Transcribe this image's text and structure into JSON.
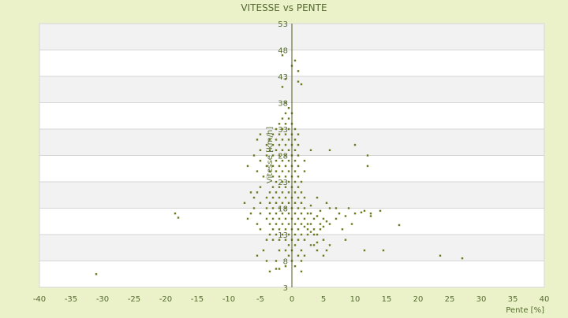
{
  "chart_data": {
    "type": "scatter",
    "title": "VITESSE vs PENTE",
    "xlabel": "Pente [%]",
    "ylabel": "Vitesse [km/h]",
    "xlim": [
      -40,
      40
    ],
    "ylim": [
      3,
      53
    ],
    "xticks": [
      -40,
      -35,
      -30,
      -25,
      -20,
      -15,
      -10,
      -5,
      0,
      5,
      10,
      15,
      20,
      25,
      30,
      35,
      40
    ],
    "yticks": [
      3,
      8,
      13,
      18,
      23,
      28,
      33,
      38,
      43,
      48,
      53
    ],
    "grid": "alternating horizontal bands",
    "legend": "none",
    "colors": {
      "background": "#ebf1c9",
      "plot_band_light": "#ffffff",
      "plot_band_dark": "#f2f2f2",
      "grid_line": "#d6d6d6",
      "text": "#556b2f",
      "point": "#6b7a1e",
      "axis": "#4a5a1a"
    },
    "series": [
      {
        "points": [
          [
            -31,
            5.5
          ],
          [
            -18.5,
            17
          ],
          [
            -18,
            16.2
          ],
          [
            23.5,
            9
          ],
          [
            27,
            8.5
          ],
          [
            17,
            14.8
          ],
          [
            14.5,
            10
          ],
          [
            14,
            17.5
          ],
          [
            12.5,
            16.5
          ],
          [
            12.5,
            17
          ],
          [
            11.5,
            17.5
          ],
          [
            11,
            17.2
          ],
          [
            12,
            26
          ],
          [
            12,
            28
          ],
          [
            11.5,
            10
          ],
          [
            10,
            30
          ],
          [
            10,
            17
          ],
          [
            9.5,
            15
          ],
          [
            9,
            18
          ],
          [
            8.5,
            16.5
          ],
          [
            8.5,
            12
          ],
          [
            8,
            14
          ],
          [
            7.5,
            17
          ],
          [
            7,
            16
          ],
          [
            7,
            18
          ],
          [
            6,
            29
          ],
          [
            6,
            18
          ],
          [
            6,
            15
          ],
          [
            5.5,
            19
          ],
          [
            5.5,
            15.5
          ],
          [
            5,
            14.5
          ],
          [
            5,
            16
          ],
          [
            5,
            12
          ],
          [
            4.5,
            14
          ],
          [
            4.5,
            17.5
          ],
          [
            4.5,
            15
          ],
          [
            4,
            16.5
          ],
          [
            4,
            13
          ],
          [
            4,
            20
          ],
          [
            3.5,
            14
          ],
          [
            3.5,
            16
          ],
          [
            3.5,
            13
          ],
          [
            3,
            15
          ],
          [
            3,
            17
          ],
          [
            3,
            13.5
          ],
          [
            3,
            18.5
          ],
          [
            3,
            29
          ],
          [
            2.5,
            13
          ],
          [
            2.5,
            15
          ],
          [
            2.5,
            17
          ],
          [
            2.5,
            14
          ],
          [
            2,
            14.5
          ],
          [
            2,
            16
          ],
          [
            2,
            18
          ],
          [
            2,
            20
          ],
          [
            2,
            12
          ],
          [
            2,
            25
          ],
          [
            2,
            27
          ],
          [
            1.5,
            15
          ],
          [
            1.5,
            13
          ],
          [
            1.5,
            17
          ],
          [
            1.5,
            19
          ],
          [
            1.5,
            21
          ],
          [
            1.5,
            23
          ],
          [
            1.5,
            10
          ],
          [
            1.5,
            8
          ],
          [
            1,
            14
          ],
          [
            1,
            16
          ],
          [
            1,
            18
          ],
          [
            1,
            20
          ],
          [
            1,
            22
          ],
          [
            1,
            24
          ],
          [
            1,
            26
          ],
          [
            1,
            28
          ],
          [
            1,
            30
          ],
          [
            1,
            32
          ],
          [
            1,
            12
          ],
          [
            1,
            42
          ],
          [
            1.5,
            41.5
          ],
          [
            1,
            44
          ],
          [
            0.5,
            15
          ],
          [
            0.5,
            17
          ],
          [
            0.5,
            19
          ],
          [
            0.5,
            21
          ],
          [
            0.5,
            23
          ],
          [
            0.5,
            25
          ],
          [
            0.5,
            27
          ],
          [
            0.5,
            29
          ],
          [
            0.5,
            31
          ],
          [
            0.5,
            33
          ],
          [
            0.5,
            13
          ],
          [
            0.5,
            11
          ],
          [
            0.5,
            46
          ],
          [
            0,
            14
          ],
          [
            0,
            16
          ],
          [
            0,
            18
          ],
          [
            0,
            20
          ],
          [
            0,
            22
          ],
          [
            0,
            24
          ],
          [
            0,
            26
          ],
          [
            0,
            28
          ],
          [
            0,
            30
          ],
          [
            0,
            32
          ],
          [
            0,
            34
          ],
          [
            0,
            36
          ],
          [
            0,
            12
          ],
          [
            0,
            10
          ],
          [
            0,
            8
          ],
          [
            0,
            45
          ],
          [
            -0.5,
            15
          ],
          [
            -0.5,
            17
          ],
          [
            -0.5,
            19
          ],
          [
            -0.5,
            21
          ],
          [
            -0.5,
            23
          ],
          [
            -0.5,
            25
          ],
          [
            -0.5,
            27
          ],
          [
            -0.5,
            29
          ],
          [
            -0.5,
            31
          ],
          [
            -0.5,
            33
          ],
          [
            -0.5,
            35
          ],
          [
            -0.5,
            37
          ],
          [
            -0.5,
            13
          ],
          [
            -0.5,
            11
          ],
          [
            -0.5,
            9
          ],
          [
            -1,
            14
          ],
          [
            -1,
            16
          ],
          [
            -1,
            18
          ],
          [
            -1,
            20
          ],
          [
            -1,
            22
          ],
          [
            -1,
            24
          ],
          [
            -1,
            26
          ],
          [
            -1,
            28
          ],
          [
            -1,
            30
          ],
          [
            -1,
            32
          ],
          [
            -1,
            34
          ],
          [
            -1,
            36
          ],
          [
            -1,
            38
          ],
          [
            -1,
            42.5
          ],
          [
            -1,
            12
          ],
          [
            -1,
            10
          ],
          [
            -1.5,
            15
          ],
          [
            -1.5,
            17
          ],
          [
            -1.5,
            19
          ],
          [
            -1.5,
            21
          ],
          [
            -1.5,
            23
          ],
          [
            -1.5,
            25
          ],
          [
            -1.5,
            27
          ],
          [
            -1.5,
            29
          ],
          [
            -1.5,
            31
          ],
          [
            -1.5,
            33
          ],
          [
            -1.5,
            35
          ],
          [
            -1.5,
            41
          ],
          [
            -1.5,
            47
          ],
          [
            -1.5,
            13
          ],
          [
            -2,
            14
          ],
          [
            -2,
            16
          ],
          [
            -2,
            18
          ],
          [
            -2,
            20
          ],
          [
            -2,
            22
          ],
          [
            -2,
            24
          ],
          [
            -2,
            26
          ],
          [
            -2,
            28
          ],
          [
            -2,
            30
          ],
          [
            -2,
            32
          ],
          [
            -2,
            34
          ],
          [
            -2,
            12
          ],
          [
            -2,
            10
          ],
          [
            -2.5,
            15
          ],
          [
            -2.5,
            17
          ],
          [
            -2.5,
            19
          ],
          [
            -2.5,
            21
          ],
          [
            -2.5,
            23
          ],
          [
            -2.5,
            25
          ],
          [
            -2.5,
            27
          ],
          [
            -2.5,
            29
          ],
          [
            -2.5,
            31
          ],
          [
            -2.5,
            33
          ],
          [
            -2.5,
            13
          ],
          [
            -2.5,
            8
          ],
          [
            -3,
            14
          ],
          [
            -3,
            16
          ],
          [
            -3,
            18
          ],
          [
            -3,
            20
          ],
          [
            -3,
            22
          ],
          [
            -3,
            24
          ],
          [
            -3,
            26
          ],
          [
            -3,
            28
          ],
          [
            -3,
            30
          ],
          [
            -3,
            32
          ],
          [
            -3,
            12
          ],
          [
            -3.5,
            15
          ],
          [
            -3.5,
            17
          ],
          [
            -3.5,
            19
          ],
          [
            -3.5,
            21
          ],
          [
            -3.5,
            25
          ],
          [
            -3.5,
            29
          ],
          [
            -3.5,
            31
          ],
          [
            -3.5,
            13
          ],
          [
            -3.5,
            6
          ],
          [
            -4,
            16
          ],
          [
            -4,
            18
          ],
          [
            -4,
            20
          ],
          [
            -4,
            26
          ],
          [
            -4,
            28
          ],
          [
            -4,
            30
          ],
          [
            -4,
            12
          ],
          [
            -4,
            8
          ],
          [
            -5,
            17
          ],
          [
            -5,
            19
          ],
          [
            -5,
            22
          ],
          [
            -5,
            27
          ],
          [
            -5,
            29
          ],
          [
            -5,
            32
          ],
          [
            -5,
            14
          ],
          [
            -5.5,
            21
          ],
          [
            -5.5,
            25
          ],
          [
            -5.5,
            31
          ],
          [
            -5.5,
            15
          ],
          [
            -5.5,
            9
          ],
          [
            -6,
            18
          ],
          [
            -6,
            20
          ],
          [
            -6,
            28
          ],
          [
            -6.5,
            21
          ],
          [
            -6.5,
            17
          ],
          [
            -7,
            26
          ],
          [
            -7,
            16
          ],
          [
            -7.5,
            19
          ],
          [
            -4.5,
            10
          ],
          [
            -4.5,
            24
          ],
          [
            -2.5,
            6.5
          ],
          [
            1.5,
            6
          ],
          [
            2,
            9
          ],
          [
            3,
            11
          ],
          [
            3.5,
            11
          ],
          [
            4,
            10
          ],
          [
            4,
            11.5
          ],
          [
            5,
            9
          ],
          [
            5.5,
            10
          ],
          [
            6,
            11
          ],
          [
            -2,
            6.5
          ],
          [
            -1,
            7
          ],
          [
            1,
            9
          ],
          [
            0.5,
            7
          ]
        ]
      }
    ]
  }
}
